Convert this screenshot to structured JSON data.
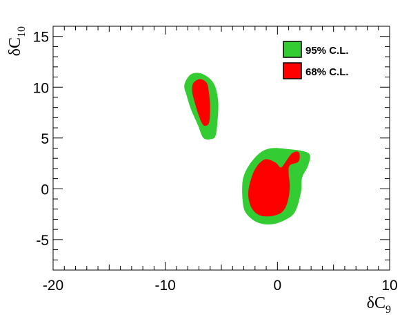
{
  "chart_data": {
    "type": "contour",
    "xlabel": "δC",
    "xlabel_sub": "9",
    "ylabel": "δC",
    "ylabel_sub": "10",
    "xlim": [
      -20,
      10
    ],
    "ylim": [
      -8,
      16
    ],
    "x_ticks": [
      -20,
      -10,
      0,
      10
    ],
    "y_ticks": [
      -5,
      0,
      5,
      10,
      15
    ],
    "x_tick_labels": [
      "-20",
      "-10",
      "0",
      "10"
    ],
    "y_tick_labels": [
      "-5",
      "0",
      "5",
      "10",
      "15"
    ],
    "legend": [
      {
        "label": "95% C.L.",
        "color": "#33cc33"
      },
      {
        "label": "68% C.L.",
        "color": "#ff0000"
      }
    ],
    "legend_position": "top-right",
    "regions": [
      {
        "name": "95% C.L.",
        "color": "#33cc33",
        "contours": [
          [
            [
              -8.1,
              9.2
            ],
            [
              -8.3,
              10.2
            ],
            [
              -7.8,
              11.2
            ],
            [
              -7.0,
              11.4
            ],
            [
              -6.2,
              11.0
            ],
            [
              -5.6,
              10.2
            ],
            [
              -5.3,
              8.8
            ],
            [
              -5.3,
              7.3
            ],
            [
              -5.5,
              5.3
            ],
            [
              -5.9,
              4.9
            ],
            [
              -6.6,
              5.0
            ],
            [
              -7.1,
              6.3
            ],
            [
              -7.7,
              7.8
            ]
          ],
          [
            [
              -3.1,
              -1.2
            ],
            [
              -3.1,
              0.8
            ],
            [
              -2.6,
              2.2
            ],
            [
              -1.6,
              3.5
            ],
            [
              -0.5,
              4.0
            ],
            [
              1.0,
              3.9
            ],
            [
              2.3,
              3.7
            ],
            [
              2.9,
              3.3
            ],
            [
              2.7,
              2.2
            ],
            [
              2.2,
              1.1
            ],
            [
              2.1,
              -0.3
            ],
            [
              1.6,
              -2.2
            ],
            [
              0.8,
              -3.0
            ],
            [
              -0.5,
              -3.5
            ],
            [
              -1.8,
              -3.3
            ],
            [
              -2.8,
              -2.4
            ]
          ]
        ]
      },
      {
        "name": "68% C.L.",
        "color": "#ff0000",
        "contours": [
          [
            [
              -7.6,
              9.6
            ],
            [
              -7.5,
              10.4
            ],
            [
              -6.9,
              10.8
            ],
            [
              -6.3,
              10.4
            ],
            [
              -6.1,
              9.4
            ],
            [
              -6.0,
              8.0
            ],
            [
              -6.1,
              6.5
            ],
            [
              -6.5,
              6.2
            ],
            [
              -6.8,
              6.6
            ],
            [
              -7.1,
              7.5
            ],
            [
              -7.4,
              8.6
            ]
          ],
          [
            [
              -2.6,
              -0.6
            ],
            [
              -2.4,
              0.8
            ],
            [
              -1.9,
              2.1
            ],
            [
              -1.1,
              2.9
            ],
            [
              -0.2,
              2.6
            ],
            [
              0.3,
              2.1
            ],
            [
              0.7,
              2.6
            ],
            [
              1.3,
              3.5
            ],
            [
              1.9,
              3.6
            ],
            [
              1.9,
              2.7
            ],
            [
              1.1,
              2.3
            ],
            [
              1.0,
              1.5
            ],
            [
              1.1,
              0.2
            ],
            [
              0.9,
              -1.3
            ],
            [
              0.4,
              -2.3
            ],
            [
              -0.6,
              -2.7
            ],
            [
              -1.6,
              -2.6
            ],
            [
              -2.3,
              -1.9
            ]
          ]
        ]
      }
    ]
  }
}
